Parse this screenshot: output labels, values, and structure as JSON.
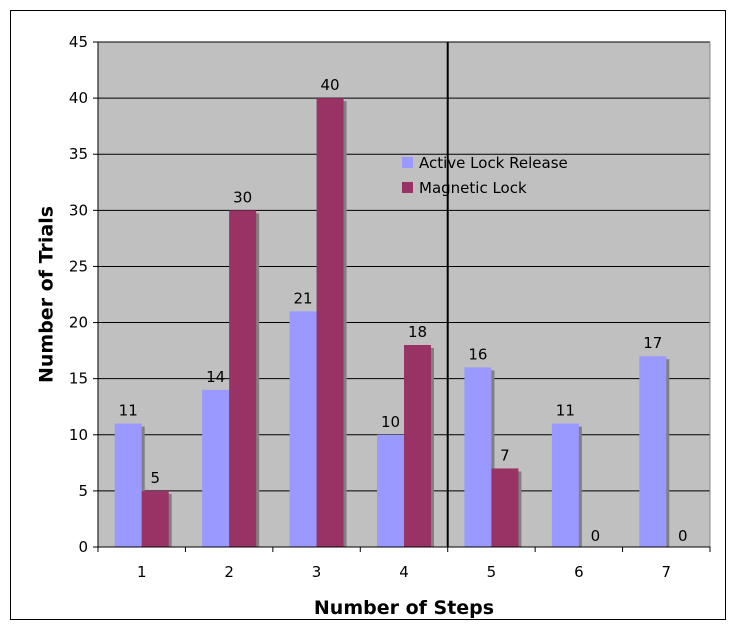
{
  "chart_data": {
    "type": "bar",
    "categories": [
      "1",
      "2",
      "3",
      "4",
      "5",
      "6",
      "7"
    ],
    "series": [
      {
        "name": "Active Lock Release",
        "values": [
          11,
          14,
          21,
          10,
          16,
          11,
          17
        ],
        "color": "#9999ff"
      },
      {
        "name": "Magnetic Lock",
        "values": [
          5,
          30,
          40,
          18,
          7,
          0,
          0
        ],
        "color": "#993366"
      }
    ],
    "xlabel": "Number of Steps",
    "ylabel": "Number of Trials",
    "ylim": [
      0,
      45
    ],
    "yticks": [
      0,
      5,
      10,
      15,
      20,
      25,
      30,
      35,
      40,
      45
    ],
    "grid": true,
    "plot_background": "#c0c0c0",
    "legend_position": "upper-middle-right",
    "vertical_reference_line_between_categories": [
      "4",
      "5"
    ]
  }
}
